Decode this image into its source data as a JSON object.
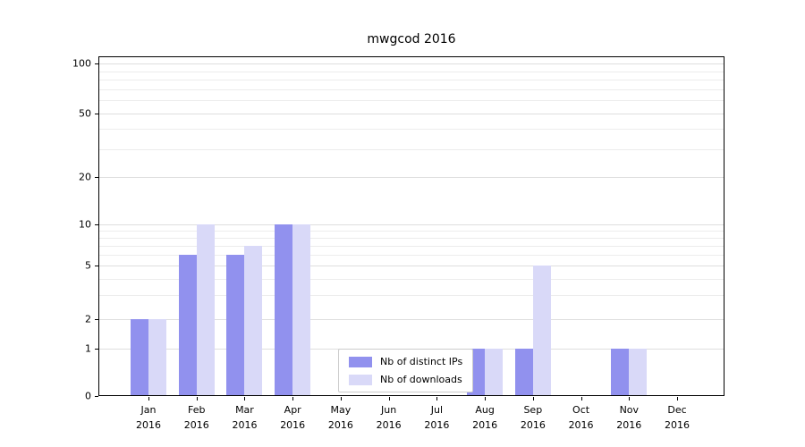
{
  "chart_data": {
    "type": "bar",
    "title": "mwgcod 2016",
    "categories": [
      "Jan 2016",
      "Feb 2016",
      "Mar 2016",
      "Apr 2016",
      "May 2016",
      "Jun 2016",
      "Jul 2016",
      "Aug 2016",
      "Sep 2016",
      "Oct 2016",
      "Nov 2016",
      "Dec 2016"
    ],
    "series": [
      {
        "name": "Nb of distinct IPs",
        "color": "#9191ee",
        "values": [
          2,
          6,
          6,
          10,
          0,
          0,
          0,
          1,
          1,
          0,
          1,
          0
        ]
      },
      {
        "name": "Nb of downloads",
        "color": "#d9d9f8",
        "values": [
          2,
          10,
          7,
          10,
          0,
          0,
          0,
          1,
          5,
          0,
          1,
          0
        ]
      }
    ],
    "yscale": "log",
    "y_ticks": [
      0,
      1,
      2,
      5,
      10,
      20,
      50,
      100
    ],
    "ylim": [
      0,
      100
    ],
    "grid": "horizontal major and minor gridlines",
    "legend_position": "inside plot, lower center"
  },
  "colors": {
    "distinct_ips": "#9191ee",
    "downloads": "#d9d9f8",
    "grid_major": "#dedede",
    "grid_minor": "#ececec",
    "axis": "#000000",
    "legend_border": "#cccccc"
  }
}
